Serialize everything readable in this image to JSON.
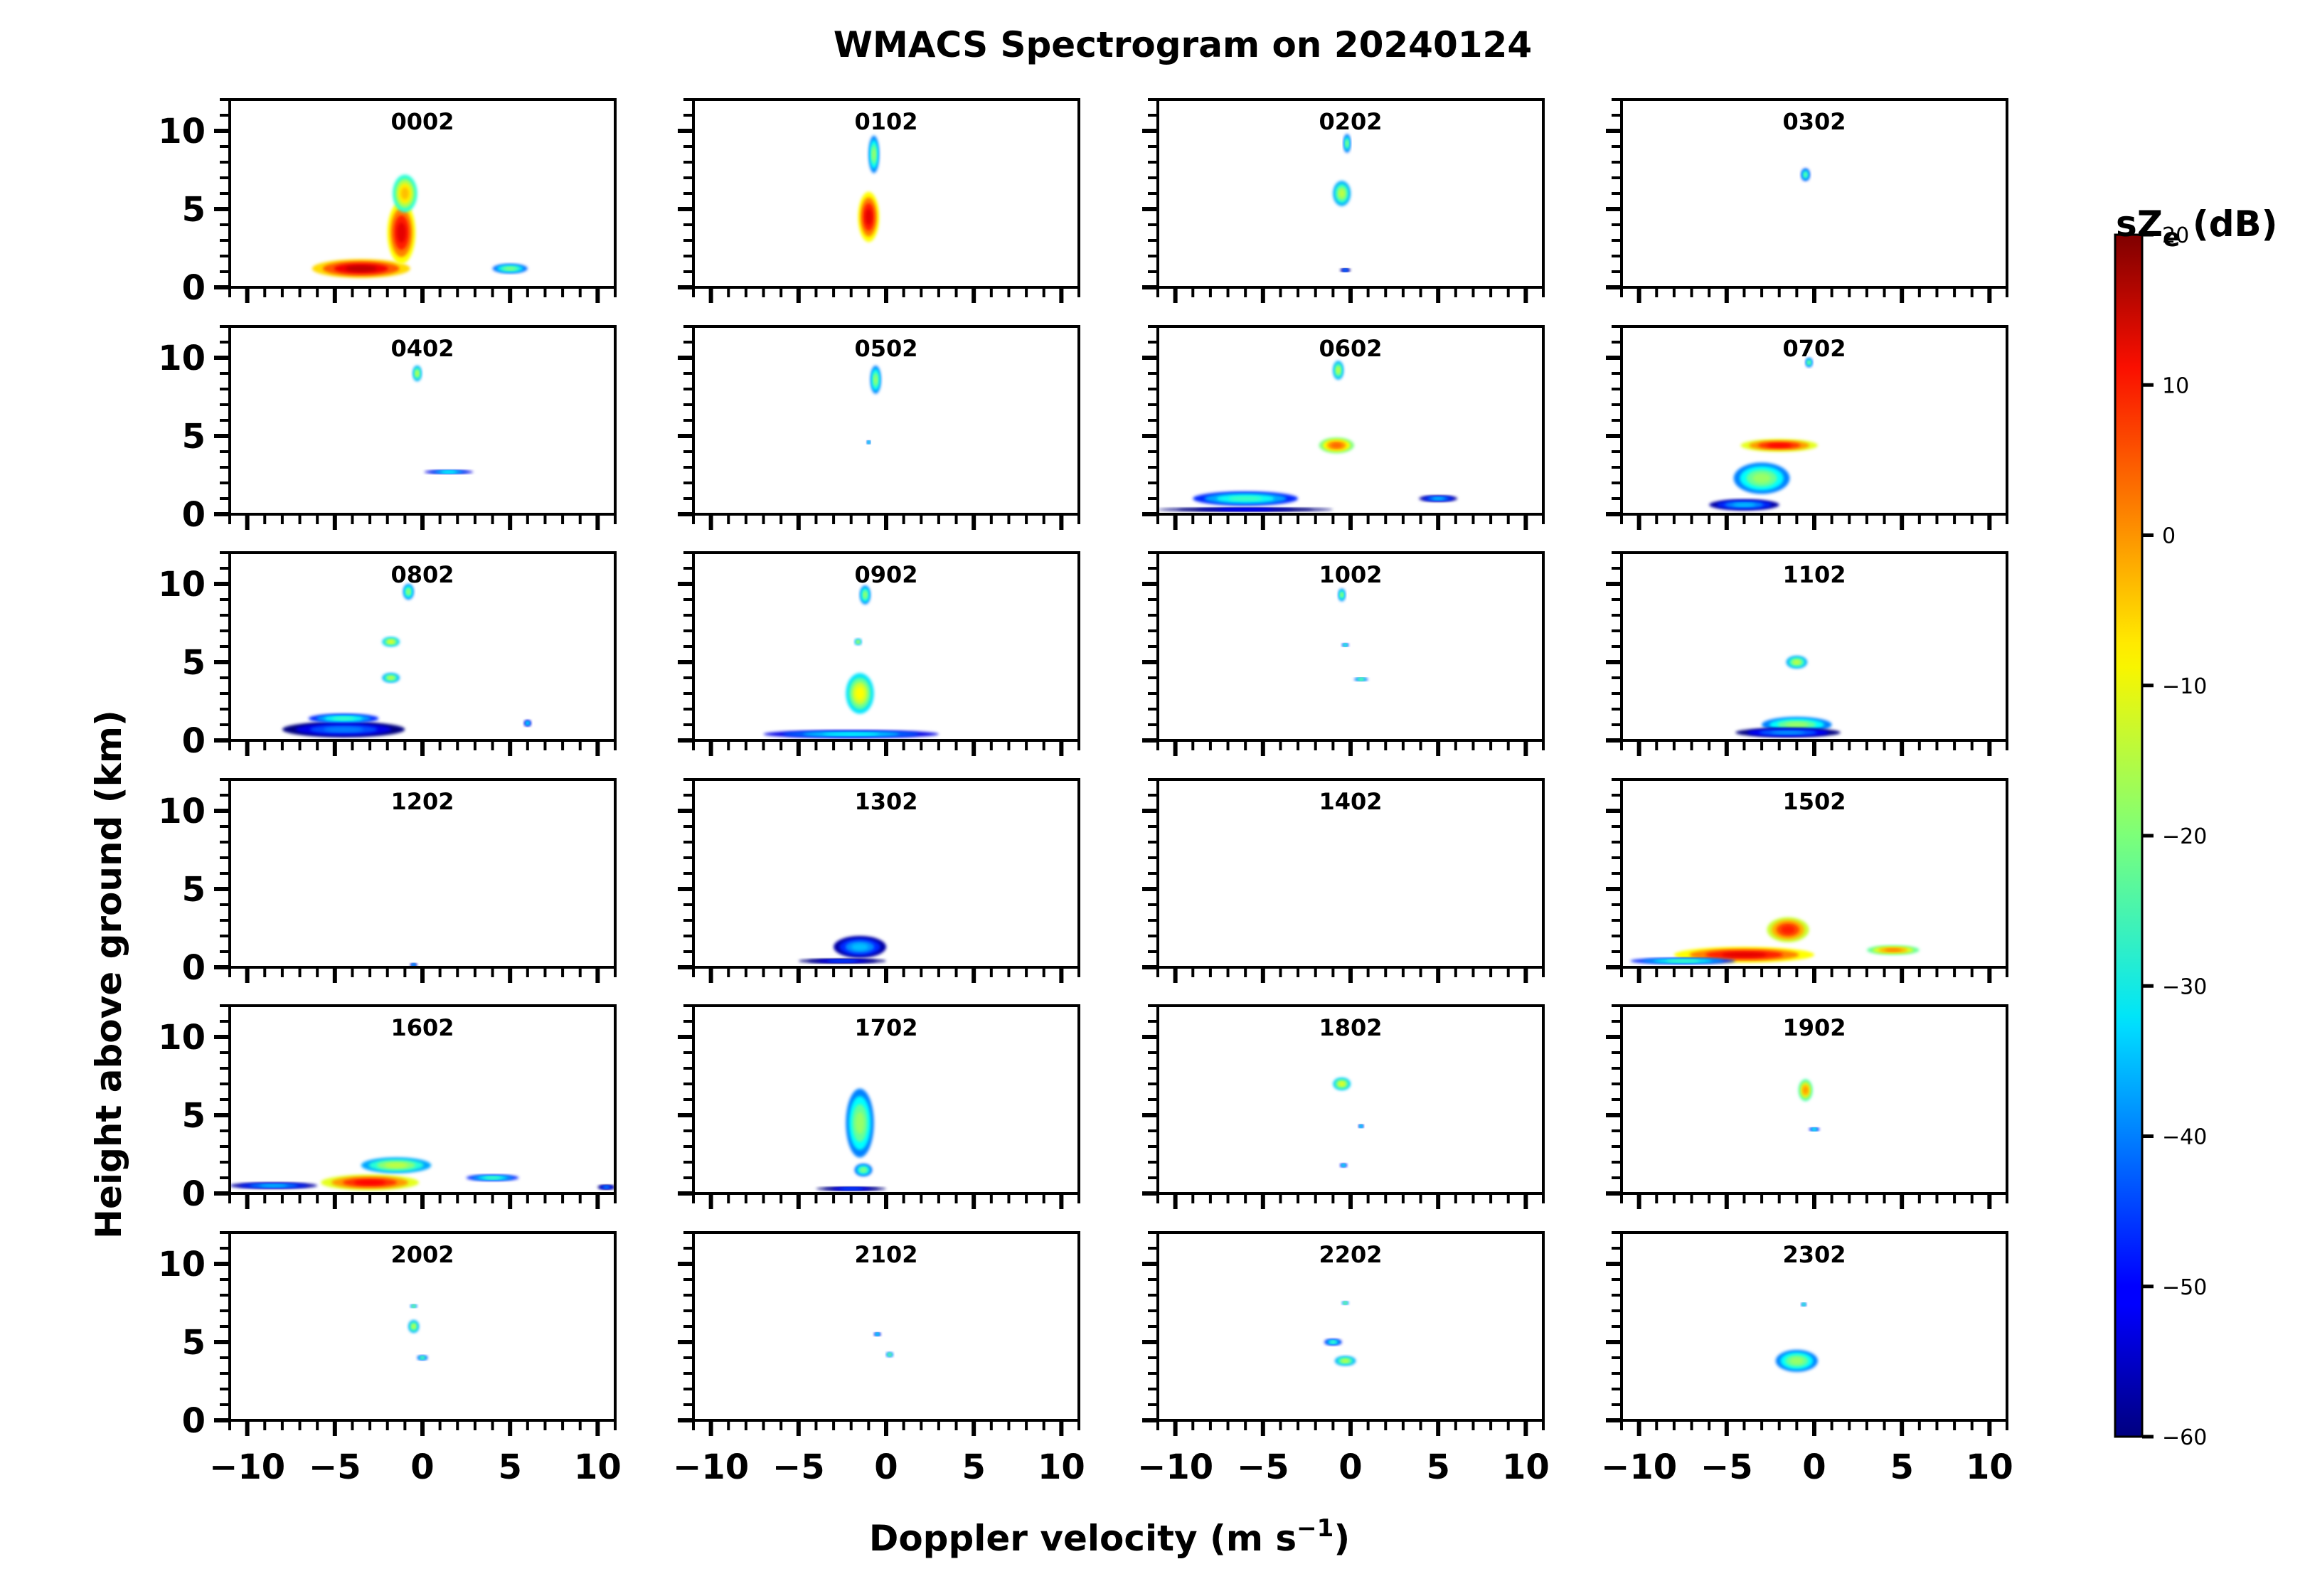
{
  "chart_data": {
    "type": "heatmap",
    "title": "WMACS Spectrogram on 20240124",
    "xlabel": "Doppler velocity (m s",
    "xlabel_sup": "−1",
    "xlabel_end": ")",
    "ylabel": "Height above ground (km)",
    "xlim": [
      -11,
      11
    ],
    "ylim": [
      0,
      12
    ],
    "x_ticks": [
      -10,
      -5,
      0,
      5,
      10
    ],
    "x_tick_labels": [
      "−10",
      "−5",
      "0",
      "5",
      "10"
    ],
    "y_ticks": [
      0,
      5,
      10
    ],
    "y_tick_labels": [
      "0",
      "5",
      "10"
    ],
    "colorbar": {
      "label": "sZ",
      "label_sub": "e",
      "label_end": " (dB)",
      "range": [
        -60,
        20
      ],
      "ticks": [
        -60,
        -50,
        -40,
        -30,
        -20,
        -10,
        0,
        10,
        20
      ],
      "tick_labels": [
        "−60",
        "−50",
        "−40",
        "−30",
        "−20",
        "−10",
        "0",
        "10",
        "20"
      ],
      "colormap": "jet"
    },
    "panels": [
      {
        "label": "0002",
        "features": [
          {
            "v": -3.5,
            "h": 1.2,
            "sv": 2.8,
            "sh": 0.6,
            "db": 15
          },
          {
            "v": -1.2,
            "h": 3.5,
            "sv": 0.8,
            "sh": 2.0,
            "db": 12
          },
          {
            "v": -1.0,
            "h": 6.0,
            "sv": 0.7,
            "sh": 1.2,
            "db": -5
          },
          {
            "v": 5.0,
            "h": 1.2,
            "sv": 1.0,
            "sh": 0.3,
            "db": -20
          }
        ]
      },
      {
        "label": "0102",
        "features": [
          {
            "v": -1.0,
            "h": 4.5,
            "sv": 0.6,
            "sh": 1.6,
            "db": 12
          },
          {
            "v": -0.7,
            "h": 8.5,
            "sv": 0.3,
            "sh": 1.2,
            "db": -18
          }
        ]
      },
      {
        "label": "0202",
        "features": [
          {
            "v": -0.5,
            "h": 6.0,
            "sv": 0.5,
            "sh": 0.8,
            "db": -15
          },
          {
            "v": -0.2,
            "h": 9.2,
            "sv": 0.2,
            "sh": 0.6,
            "db": -20
          },
          {
            "v": -0.3,
            "h": 1.1,
            "sv": 0.3,
            "sh": 0.1,
            "db": -40
          }
        ]
      },
      {
        "label": "0302",
        "features": [
          {
            "v": -0.5,
            "h": 7.2,
            "sv": 0.25,
            "sh": 0.4,
            "db": -22
          }
        ]
      },
      {
        "label": "0402",
        "features": [
          {
            "v": -0.3,
            "h": 9.0,
            "sv": 0.25,
            "sh": 0.5,
            "db": -15
          },
          {
            "v": 1.5,
            "h": 2.7,
            "sv": 1.4,
            "sh": 0.12,
            "db": -30
          }
        ]
      },
      {
        "label": "0502",
        "features": [
          {
            "v": -0.6,
            "h": 8.6,
            "sv": 0.3,
            "sh": 0.9,
            "db": -18
          },
          {
            "v": -1.0,
            "h": 4.6,
            "sv": 0.1,
            "sh": 0.1,
            "db": -30
          }
        ]
      },
      {
        "label": "0602",
        "features": [
          {
            "v": -6.0,
            "h": 1.0,
            "sv": 3.0,
            "sh": 0.45,
            "db": -25
          },
          {
            "v": -0.8,
            "h": 4.4,
            "sv": 1.0,
            "sh": 0.5,
            "db": 2
          },
          {
            "v": -0.7,
            "h": 9.2,
            "sv": 0.3,
            "sh": 0.6,
            "db": -15
          },
          {
            "v": 5.0,
            "h": 1.0,
            "sv": 1.1,
            "sh": 0.2,
            "db": -35
          },
          {
            "v": -6.0,
            "h": 0.3,
            "sv": 5.0,
            "sh": 0.12,
            "db": -50
          }
        ]
      },
      {
        "label": "0702",
        "features": [
          {
            "v": -2.0,
            "h": 4.4,
            "sv": 2.2,
            "sh": 0.4,
            "db": 10
          },
          {
            "v": -3.0,
            "h": 2.3,
            "sv": 1.6,
            "sh": 1.0,
            "db": -18
          },
          {
            "v": -4.0,
            "h": 0.6,
            "sv": 2.0,
            "sh": 0.35,
            "db": -35
          },
          {
            "v": -0.3,
            "h": 9.7,
            "sv": 0.2,
            "sh": 0.3,
            "db": -20
          }
        ]
      },
      {
        "label": "0802",
        "features": [
          {
            "v": -4.5,
            "h": 0.7,
            "sv": 3.5,
            "sh": 0.5,
            "db": -40
          },
          {
            "v": -4.5,
            "h": 1.4,
            "sv": 2.0,
            "sh": 0.3,
            "db": -25
          },
          {
            "v": -1.8,
            "h": 6.3,
            "sv": 0.5,
            "sh": 0.3,
            "db": -12
          },
          {
            "v": -1.8,
            "h": 4.0,
            "sv": 0.5,
            "sh": 0.3,
            "db": -15
          },
          {
            "v": -0.8,
            "h": 9.5,
            "sv": 0.3,
            "sh": 0.5,
            "db": -18
          },
          {
            "v": 6.0,
            "h": 1.1,
            "sv": 0.2,
            "sh": 0.2,
            "db": -30
          }
        ]
      },
      {
        "label": "0902",
        "features": [
          {
            "v": -2.0,
            "h": 0.4,
            "sv": 5.0,
            "sh": 0.25,
            "db": -30
          },
          {
            "v": -1.5,
            "h": 3.0,
            "sv": 0.8,
            "sh": 1.3,
            "db": -10
          },
          {
            "v": -1.6,
            "h": 6.3,
            "sv": 0.2,
            "sh": 0.2,
            "db": -15
          },
          {
            "v": -1.2,
            "h": 9.3,
            "sv": 0.3,
            "sh": 0.6,
            "db": -18
          }
        ]
      },
      {
        "label": "1002",
        "features": [
          {
            "v": -0.5,
            "h": 9.3,
            "sv": 0.2,
            "sh": 0.4,
            "db": -18
          },
          {
            "v": -0.3,
            "h": 6.1,
            "sv": 0.2,
            "sh": 0.1,
            "db": -25
          },
          {
            "v": 0.6,
            "h": 3.9,
            "sv": 0.4,
            "sh": 0.1,
            "db": -22
          }
        ]
      },
      {
        "label": "1102",
        "features": [
          {
            "v": -1.0,
            "h": 1.0,
            "sv": 2.0,
            "sh": 0.5,
            "db": -18
          },
          {
            "v": -1.5,
            "h": 0.5,
            "sv": 3.0,
            "sh": 0.3,
            "db": -38
          },
          {
            "v": -1.0,
            "h": 5.0,
            "sv": 0.6,
            "sh": 0.4,
            "db": -15
          }
        ]
      },
      {
        "label": "1202",
        "features": [
          {
            "v": -0.5,
            "h": 0.15,
            "sv": 0.2,
            "sh": 0.1,
            "db": -35
          }
        ]
      },
      {
        "label": "1302",
        "features": [
          {
            "v": -1.5,
            "h": 1.3,
            "sv": 1.5,
            "sh": 0.7,
            "db": -35
          },
          {
            "v": -2.5,
            "h": 0.4,
            "sv": 2.5,
            "sh": 0.15,
            "db": -45
          }
        ]
      },
      {
        "label": "1402",
        "features": []
      },
      {
        "label": "1502",
        "features": [
          {
            "v": -4.0,
            "h": 0.8,
            "sv": 4.0,
            "sh": 0.5,
            "db": 12
          },
          {
            "v": -1.5,
            "h": 2.4,
            "sv": 1.2,
            "sh": 0.8,
            "db": 8
          },
          {
            "v": -7.5,
            "h": 0.4,
            "sv": 3.0,
            "sh": 0.2,
            "db": -25
          },
          {
            "v": 4.5,
            "h": 1.1,
            "sv": 1.5,
            "sh": 0.3,
            "db": 0
          }
        ]
      },
      {
        "label": "1602",
        "features": [
          {
            "v": -3.0,
            "h": 0.7,
            "sv": 2.8,
            "sh": 0.5,
            "db": 10
          },
          {
            "v": -1.5,
            "h": 1.8,
            "sv": 2.0,
            "sh": 0.5,
            "db": -15
          },
          {
            "v": -8.5,
            "h": 0.5,
            "sv": 2.5,
            "sh": 0.2,
            "db": -35
          },
          {
            "v": 4.0,
            "h": 1.0,
            "sv": 1.5,
            "sh": 0.2,
            "db": -25
          },
          {
            "v": 10.5,
            "h": 0.4,
            "sv": 0.5,
            "sh": 0.15,
            "db": -40
          }
        ]
      },
      {
        "label": "1702",
        "features": [
          {
            "v": -1.5,
            "h": 4.5,
            "sv": 0.8,
            "sh": 2.2,
            "db": -18
          },
          {
            "v": -1.3,
            "h": 1.5,
            "sv": 0.5,
            "sh": 0.4,
            "db": -20
          },
          {
            "v": -2.0,
            "h": 0.3,
            "sv": 2.0,
            "sh": 0.12,
            "db": -45
          }
        ]
      },
      {
        "label": "1802",
        "features": [
          {
            "v": -0.5,
            "h": 7.0,
            "sv": 0.5,
            "sh": 0.4,
            "db": -12
          },
          {
            "v": 0.6,
            "h": 4.3,
            "sv": 0.15,
            "sh": 0.1,
            "db": -30
          },
          {
            "v": -0.4,
            "h": 1.8,
            "sv": 0.2,
            "sh": 0.12,
            "db": -28
          }
        ]
      },
      {
        "label": "1902",
        "features": [
          {
            "v": -0.5,
            "h": 6.6,
            "sv": 0.4,
            "sh": 0.7,
            "db": -2
          },
          {
            "v": 0.0,
            "h": 4.1,
            "sv": 0.3,
            "sh": 0.1,
            "db": -28
          }
        ]
      },
      {
        "label": "2002",
        "features": [
          {
            "v": -0.5,
            "h": 6.0,
            "sv": 0.3,
            "sh": 0.4,
            "db": -15
          },
          {
            "v": -0.5,
            "h": 7.3,
            "sv": 0.2,
            "sh": 0.1,
            "db": -20
          },
          {
            "v": 0.0,
            "h": 4.0,
            "sv": 0.3,
            "sh": 0.15,
            "db": -22
          }
        ]
      },
      {
        "label": "2102",
        "features": [
          {
            "v": 0.2,
            "h": 4.2,
            "sv": 0.2,
            "sh": 0.15,
            "db": -20
          },
          {
            "v": -0.5,
            "h": 5.5,
            "sv": 0.2,
            "sh": 0.1,
            "db": -30
          }
        ]
      },
      {
        "label": "2202",
        "features": [
          {
            "v": -1.0,
            "h": 5.0,
            "sv": 0.5,
            "sh": 0.2,
            "db": -25
          },
          {
            "v": -0.3,
            "h": 3.8,
            "sv": 0.6,
            "sh": 0.3,
            "db": -15
          },
          {
            "v": -0.3,
            "h": 7.5,
            "sv": 0.2,
            "sh": 0.1,
            "db": -20
          }
        ]
      },
      {
        "label": "2302",
        "features": [
          {
            "v": -1.0,
            "h": 3.8,
            "sv": 1.2,
            "sh": 0.7,
            "db": -18
          },
          {
            "v": -0.6,
            "h": 7.4,
            "sv": 0.15,
            "sh": 0.1,
            "db": -25
          }
        ]
      }
    ]
  }
}
